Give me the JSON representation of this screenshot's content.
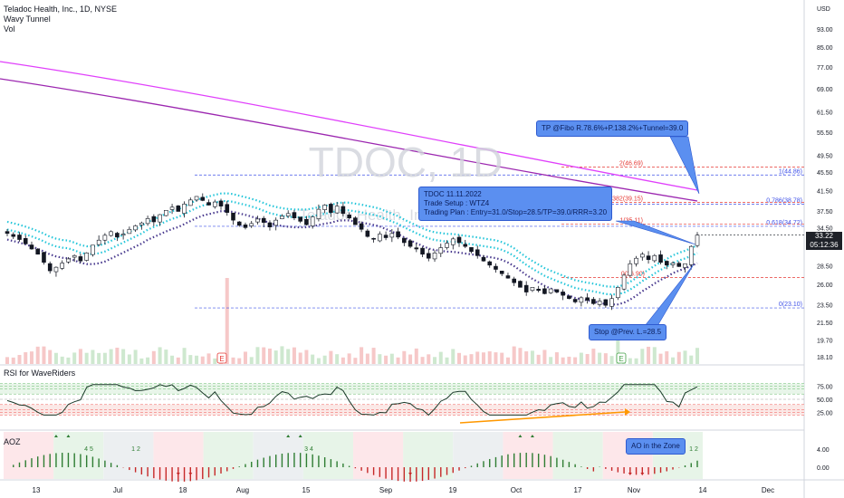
{
  "legend": {
    "symbol_line": "Teladoc Health, Inc., 1D, NYSE",
    "indicator_1": "Wavy Tunnel",
    "indicator_2": "Vol"
  },
  "currency": "USD",
  "watermark": "TDOC, 1D",
  "watermark_sub": "Teladoc Health, Inc.",
  "price_badge": {
    "price": "33.22",
    "countdown": "05:12:36"
  },
  "callouts": {
    "tp": "TP @Fibo R.78.6%+P.138.2%+Tunnel=39.0",
    "setup_line1": "TDOC 11.11.2022",
    "setup_line2": "Trade Setup : WTZ4",
    "setup_line3": "Trading Plan : Entry=31.0/Stop=28.5/TP=39.0/RRR=3.20",
    "stop": "Stop @Prev. L.=28.5",
    "aoz": "AO in the Zone"
  },
  "panels": {
    "rsi_title": "RSI for WaveRiders",
    "aoz_title": "AOZ"
  },
  "earnings_marker": "E",
  "colors": {
    "up": "#ffffff",
    "down": "#131722",
    "tunnel_a": "#26c6da",
    "tunnel_b": "#4a3b8f",
    "ma_pink": "#e040fb",
    "ma_purple": "#9c27b0",
    "fib": "#3f51e8",
    "fib_red": "#e53935",
    "callout": "#5b8ff0",
    "rsi_line": "#1b3a2a",
    "divergence": "#ff9800"
  },
  "chart_data": [
    {
      "type": "candlestick",
      "title": "Teladoc Health, Inc., 1D, NYSE",
      "y_axis_ticks": [
        93.0,
        85.0,
        77.0,
        69.0,
        61.5,
        55.5,
        49.5,
        45.5,
        41.5,
        37.5,
        34.5,
        31.5,
        28.5,
        26.0,
        23.5,
        21.5,
        19.7,
        18.1
      ],
      "y_axis_labels": [
        "93.00",
        "85.00",
        "77.00",
        "69.00",
        "61.50",
        "55.50",
        "49.50",
        "45.50",
        "41.50",
        "37.50",
        "34.50",
        "31.50",
        "28.50",
        "26.00",
        "23.50",
        "21.50",
        "19.70",
        "18.10"
      ],
      "x_axis_labels": [
        "13",
        "Jul",
        "18",
        "Aug",
        "15",
        "Sep",
        "19",
        "Oct",
        "17",
        "Nov",
        "14",
        "Dec"
      ],
      "log_scale": true,
      "fibonacci": [
        {
          "level": "0",
          "price": 23.1,
          "label": "0(23.10)"
        },
        {
          "level": "0.618",
          "price": 34.72,
          "label": "0.618(34.72)"
        },
        {
          "level": "0.786",
          "price": 38.78,
          "label": "0.786(38.78)"
        },
        {
          "level": "1",
          "price": 44.86,
          "label": "1(44.86)"
        },
        {
          "level": "1(proj)",
          "price": 35.11,
          "label": "1(35.11)"
        },
        {
          "level": "1.382",
          "price": 39.15,
          "label": "1.382(39.15)"
        },
        {
          "level": "2",
          "price": 46.69,
          "label": "2(46.69)"
        },
        {
          "level": "0(proj)",
          "price": 26.9,
          "label": "0(26.90)"
        }
      ],
      "last_price": 33.22,
      "closes_approx": [
        33.5,
        33.0,
        32.5,
        31.8,
        31.0,
        30.2,
        29.0,
        27.8,
        28.3,
        28.9,
        29.5,
        30.0,
        29.2,
        30.4,
        31.6,
        32.4,
        33.2,
        33.8,
        32.9,
        33.4,
        34.2,
        34.8,
        35.3,
        36.1,
        35.5,
        36.8,
        37.6,
        38.2,
        37.4,
        38.8,
        39.6,
        40.3,
        39.5,
        38.6,
        39.2,
        38.4,
        37.2,
        35.8,
        34.9,
        34.5,
        35.2,
        36.0,
        35.4,
        34.6,
        35.8,
        36.5,
        37.0,
        36.2,
        35.6,
        35.0,
        36.4,
        37.8,
        38.6,
        37.2,
        38.4,
        37.0,
        36.2,
        35.0,
        34.2,
        33.0,
        32.6,
        33.4,
        32.8,
        33.5,
        32.9,
        32.0,
        31.4,
        31.0,
        30.2,
        29.6,
        30.4,
        31.2,
        31.9,
        32.6,
        32.0,
        31.4,
        30.6,
        30.0,
        29.2,
        28.6,
        28.0,
        27.4,
        26.8,
        26.2,
        25.6,
        25.0,
        25.6,
        25.2,
        24.8,
        25.4,
        25.0,
        24.6,
        24.2,
        23.8,
        24.3,
        24.0,
        23.6,
        23.9,
        23.4,
        24.2,
        25.6,
        27.2,
        28.8,
        29.6,
        30.2,
        29.4,
        30.0,
        29.0,
        28.6,
        28.9,
        28.4,
        28.8,
        31.4,
        33.22
      ]
    },
    {
      "type": "line",
      "title": "RSI for WaveRiders",
      "y_axis_ticks": [
        75.0,
        50.0,
        25.0
      ],
      "y_axis_labels": [
        "75.00",
        "50.00",
        "25.00"
      ]
    },
    {
      "type": "bar",
      "title": "AOZ",
      "y_axis_ticks": [
        4.0,
        0.0
      ],
      "y_axis_labels": [
        "4.00",
        "0.00"
      ],
      "zone_labels": [
        "4 5",
        "1 2",
        "3 4",
        "1 2"
      ]
    }
  ]
}
